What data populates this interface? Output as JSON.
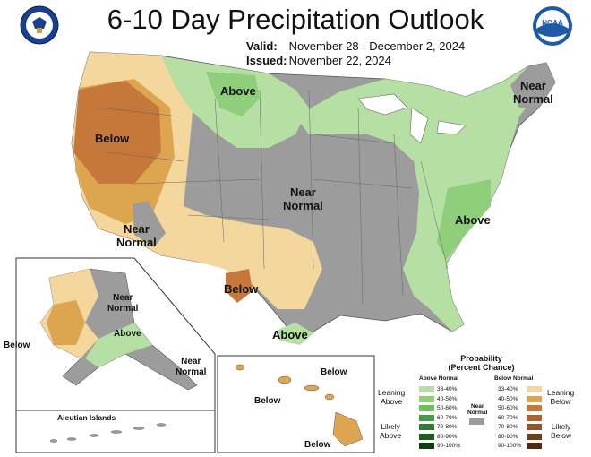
{
  "header": {
    "title": "6-10 Day Precipitation Outlook",
    "valid_label": "Valid:",
    "valid_value": "November 28 - December 2, 2024",
    "issued_label": "Issued:",
    "issued_value": "November 22, 2024"
  },
  "logos": {
    "left": "doc-seal-icon",
    "right": "noaa-logo-icon"
  },
  "colors": {
    "above_33_40": "#b5dfa3",
    "above_40_50": "#8fcf7c",
    "above_50_60": "#6dbf5c",
    "above_60_70": "#4a9a4a",
    "above_70_80": "#2e7d32",
    "above_80_90": "#1b5e20",
    "above_90_100": "#0d3d10",
    "near_normal": "#9c9c9c",
    "below_33_40": "#f3d79c",
    "below_40_50": "#dea551",
    "below_50_60": "#c6783a",
    "below_60_70": "#b0632f",
    "below_70_80": "#955226",
    "below_80_90": "#6e3e1d",
    "below_90_100": "#4d2a12"
  },
  "map_labels": {
    "above_north": "Above",
    "below_west": "Below",
    "near_normal_central_1": "Near",
    "near_normal_central_2": "Normal",
    "near_normal_sw_1": "Near",
    "near_normal_sw_2": "Normal",
    "near_normal_ne_1": "Near",
    "near_normal_ne_2": "Normal",
    "above_east": "Above",
    "below_texas": "Below",
    "above_gulf": "Above"
  },
  "alaska": {
    "near_normal_1": "Near",
    "near_normal_2": "Normal",
    "above": "Above",
    "below": "Below",
    "near_se_1": "Near",
    "near_se_2": "Normal",
    "aleutian": "Aleutian Islands"
  },
  "hawaii": {
    "below_1": "Below",
    "below_2": "Below",
    "below_3": "Below"
  },
  "legend": {
    "title_1": "Probability",
    "title_2": "(Percent Chance)",
    "above_header": "Above Normal",
    "below_header": "Below Normal",
    "near_1": "Near",
    "near_2": "Normal",
    "leaning_above_1": "Leaning",
    "leaning_above_2": "Above",
    "likely_above_1": "Likely",
    "likely_above_2": "Above",
    "leaning_below_1": "Leaning",
    "leaning_below_2": "Below",
    "likely_below_1": "Likely",
    "likely_below_2": "Below",
    "ranges": [
      "33-40%",
      "40-50%",
      "50-60%",
      "60-70%",
      "70-80%",
      "80-90%",
      "90-100%"
    ]
  }
}
